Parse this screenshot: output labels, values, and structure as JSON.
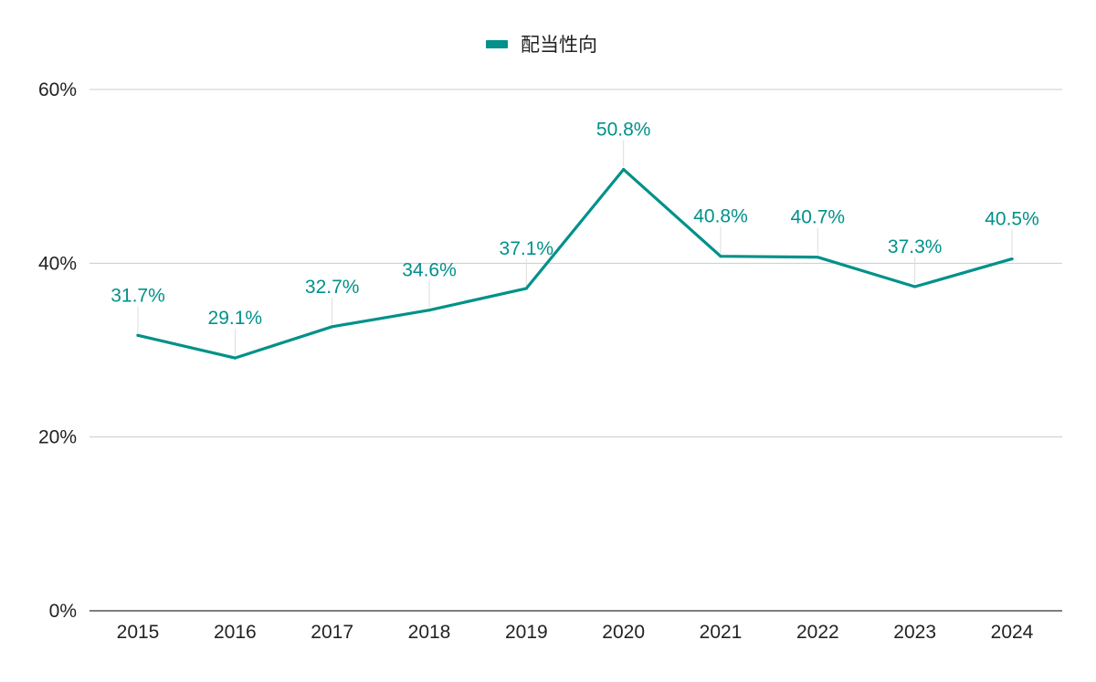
{
  "chart_data": {
    "type": "line",
    "title": "",
    "xlabel": "",
    "ylabel": "",
    "legend_position": "top-center",
    "grid": true,
    "ylim": [
      0,
      0.6
    ],
    "y_ticks": [
      0,
      0.2,
      0.4,
      0.6
    ],
    "y_tick_labels": [
      "0%",
      "20%",
      "40%",
      "60%"
    ],
    "categories": [
      "2015",
      "2016",
      "2017",
      "2018",
      "2019",
      "2020",
      "2021",
      "2022",
      "2023",
      "2024"
    ],
    "series": [
      {
        "name": "配当性向",
        "color": "#00918A",
        "values": [
          0.317,
          0.291,
          0.327,
          0.346,
          0.371,
          0.508,
          0.408,
          0.407,
          0.373,
          0.405
        ],
        "labels": [
          "31.7%",
          "29.1%",
          "32.7%",
          "34.6%",
          "37.1%",
          "50.8%",
          "40.8%",
          "40.7%",
          "37.3%",
          "40.5%"
        ]
      }
    ],
    "colors": {
      "gridline": "#cccccc",
      "axis": "#333333",
      "leader": "#dddddd"
    }
  }
}
